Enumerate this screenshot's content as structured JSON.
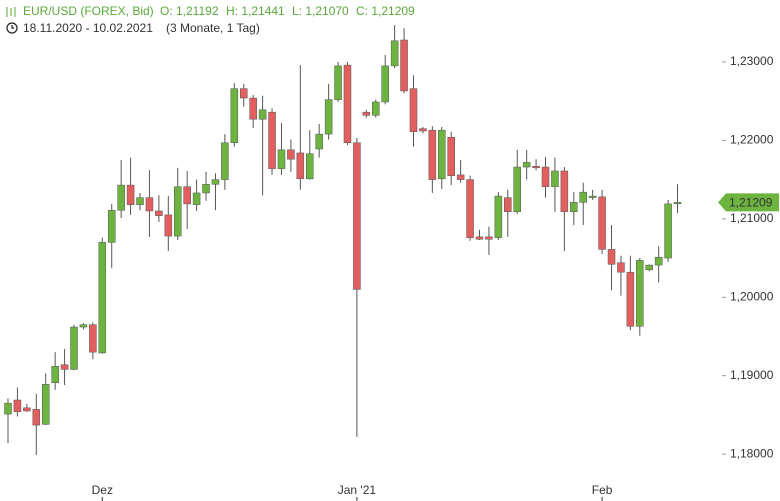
{
  "chart_data": {
    "type": "candlestick",
    "title": "EUR/USD (FOREX, Bid)",
    "ohlc_summary": [
      "O: 1,21192",
      "H: 1,21441",
      "L: 1,21070",
      "C: 1,21209"
    ],
    "date_range": "18.11.2020 - 10.02.2021",
    "period": "(3 Monate, 1 Tag)",
    "up_color": "#6cb33f",
    "down_color": "#e15f5f",
    "categories": [
      null,
      null,
      null,
      null,
      null,
      null,
      null,
      null,
      null,
      null,
      "Dez",
      null,
      null,
      null,
      null,
      null,
      null,
      null,
      null,
      null,
      null,
      null,
      null,
      null,
      null,
      null,
      null,
      null,
      null,
      null,
      null,
      null,
      null,
      null,
      null,
      null,
      null,
      "Jan '21",
      null,
      null,
      null,
      null,
      null,
      null,
      null,
      null,
      null,
      null,
      null,
      null,
      null,
      null,
      null,
      null,
      null,
      null,
      null,
      null,
      null,
      null,
      null,
      null,
      null,
      "Feb",
      null,
      null,
      null,
      null,
      null,
      null,
      null,
      null
    ],
    "open": [
      1.1851,
      1.1869,
      1.1859,
      1.1857,
      1.1838,
      1.1891,
      1.1914,
      1.1908,
      1.1962,
      1.1965,
      1.1929,
      1.207,
      1.2111,
      1.2143,
      1.2118,
      1.2127,
      1.211,
      1.2105,
      1.2078,
      1.2141,
      1.2118,
      1.2133,
      1.2144,
      1.215,
      1.2197,
      1.2266,
      1.2254,
      1.2227,
      1.2236,
      1.2164,
      1.2188,
      1.2184,
      1.2151,
      1.2189,
      1.2208,
      1.2252,
      1.2296,
      1.2197,
      1.2236,
      1.2232,
      1.2249,
      1.2295,
      1.2328,
      1.2266,
      1.2215,
      1.2213,
      1.2151,
      1.2204,
      1.2156,
      1.215,
      1.2077,
      1.2077,
      1.2076,
      1.2127,
      1.2109,
      1.2166,
      1.2167,
      1.2166,
      1.2141,
      1.2161,
      1.2109,
      1.2121,
      1.2127,
      1.2128,
      1.2061,
      1.2044,
      1.2032,
      1.1963,
      1.2035,
      1.2041,
      1.205,
      1.21192
    ],
    "high": [
      1.1871,
      1.1885,
      1.1864,
      1.1877,
      1.1903,
      1.193,
      1.1934,
      1.1965,
      1.1967,
      1.1968,
      1.2076,
      1.2119,
      1.2175,
      1.2178,
      1.2133,
      1.2162,
      1.213,
      1.2129,
      1.2165,
      1.2161,
      1.215,
      1.216,
      1.2158,
      1.2208,
      1.2273,
      1.2272,
      1.2258,
      1.2257,
      1.2241,
      1.2222,
      1.2201,
      1.2296,
      1.2213,
      1.2221,
      1.2272,
      1.23,
      1.23,
      1.2203,
      1.2239,
      1.2252,
      1.2309,
      1.2347,
      1.2343,
      1.2283,
      1.2217,
      1.2218,
      1.2217,
      1.2211,
      1.2175,
      1.2155,
      1.2086,
      1.209,
      1.2134,
      1.2137,
      1.2188,
      1.2188,
      1.2176,
      1.2179,
      1.2178,
      1.2166,
      1.2134,
      1.2146,
      1.2137,
      1.2137,
      1.2092,
      1.2053,
      1.2053,
      1.205,
      1.2042,
      1.2065,
      1.2124,
      1.21441
    ],
    "low": [
      1.1814,
      1.1848,
      1.1854,
      1.1799,
      1.1837,
      1.1882,
      1.1888,
      1.1907,
      1.1959,
      1.1921,
      1.1928,
      1.2037,
      1.2101,
      1.2105,
      1.2111,
      1.2077,
      1.2096,
      1.2059,
      1.2073,
      1.2087,
      1.211,
      1.2123,
      1.2111,
      1.2137,
      1.2192,
      1.2243,
      1.2216,
      1.213,
      1.2156,
      1.2156,
      1.216,
      1.2137,
      1.215,
      1.2178,
      1.2201,
      1.2249,
      1.2194,
      1.1822,
      1.2229,
      1.2229,
      1.2246,
      1.2292,
      1.226,
      1.2192,
      1.2209,
      1.2133,
      1.2138,
      1.2143,
      1.2146,
      1.2072,
      1.2073,
      1.2054,
      1.2073,
      1.2077,
      1.2106,
      1.215,
      1.2162,
      1.2127,
      1.2109,
      1.2059,
      1.2092,
      1.2092,
      1.2124,
      1.2055,
      1.2009,
      1.2002,
      1.1958,
      1.1951,
      1.2033,
      1.2019,
      1.2045,
      1.2107
    ],
    "close": [
      1.1865,
      1.1854,
      1.1855,
      1.1837,
      1.1889,
      1.1912,
      1.1908,
      1.1962,
      1.1965,
      1.193,
      1.207,
      1.2111,
      1.2143,
      1.2118,
      1.2127,
      1.211,
      1.2104,
      1.2078,
      1.2141,
      1.2119,
      1.2133,
      1.2144,
      1.215,
      1.2197,
      1.2266,
      1.2254,
      1.2227,
      1.2239,
      1.2164,
      1.2188,
      1.2176,
      1.2151,
      1.2183,
      1.2208,
      1.2252,
      1.2295,
      1.2197,
      1.201,
      1.2232,
      1.2249,
      1.2295,
      1.2327,
      1.2263,
      1.2211,
      1.2212,
      1.215,
      1.2213,
      1.2155,
      1.215,
      1.2076,
      1.2074,
      1.2074,
      1.2129,
      1.2109,
      1.2166,
      1.2172,
      1.2165,
      1.2141,
      1.2161,
      1.2109,
      1.2121,
      1.2134,
      1.2129,
      1.2061,
      1.2042,
      1.2032,
      1.1963,
      1.2047,
      1.2041,
      1.2051,
      1.2119,
      1.21209
    ],
    "current_price": {
      "value": 1.21209,
      "label": "1,21209"
    },
    "ylim": [
      1.1767,
      1.2379
    ],
    "yticks": [
      {
        "value": 1.18,
        "label": "1,18000"
      },
      {
        "value": 1.19,
        "label": "1,19000"
      },
      {
        "value": 1.2,
        "label": "1,20000"
      },
      {
        "value": 1.21,
        "label": "1,21000"
      },
      {
        "value": 1.22,
        "label": "1,22000"
      },
      {
        "value": 1.23,
        "label": "1,23000"
      }
    ],
    "y_axis_side": "right",
    "grid": false
  }
}
